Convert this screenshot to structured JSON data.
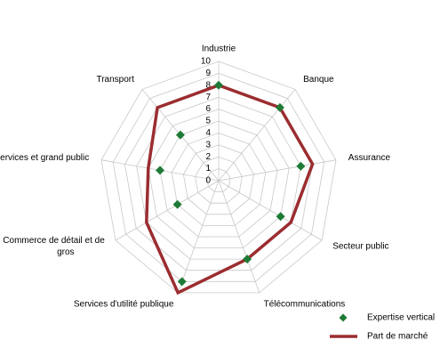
{
  "chart_data": {
    "type": "radar",
    "categories": [
      "Industrie",
      "Banque",
      "Assurance",
      "Secteur public",
      "Télécommunications",
      "Services d'utilité publique",
      "Commerce de détail et de gros",
      "Services et grand public",
      "Transport"
    ],
    "category_lines": [
      [
        "Industrie"
      ],
      [
        "Banque"
      ],
      [
        "Assurance"
      ],
      [
        "Secteur public"
      ],
      [
        "Télécommunications"
      ],
      [
        "Services d'utilité publique"
      ],
      [
        "Commerce de détail et de",
        "gros"
      ],
      [
        "Services et grand public"
      ],
      [
        "Transport"
      ]
    ],
    "rlim": [
      0,
      10
    ],
    "ticks": [
      "0",
      "1",
      "2",
      "3",
      "4",
      "5",
      "6",
      "7",
      "8",
      "9",
      "10"
    ],
    "grid": true,
    "legend_position": "bottom-right",
    "series": [
      {
        "name": "Expertise vertical",
        "style": "markers",
        "marker": "diamond",
        "color": "#1e7a36",
        "values": [
          8,
          8,
          7,
          6,
          7,
          9,
          4,
          5,
          5
        ]
      },
      {
        "name": "Part de marché",
        "style": "line",
        "color": "#9b2d30",
        "values": [
          8,
          8,
          8,
          7,
          7,
          10,
          7,
          6,
          8
        ]
      }
    ]
  }
}
